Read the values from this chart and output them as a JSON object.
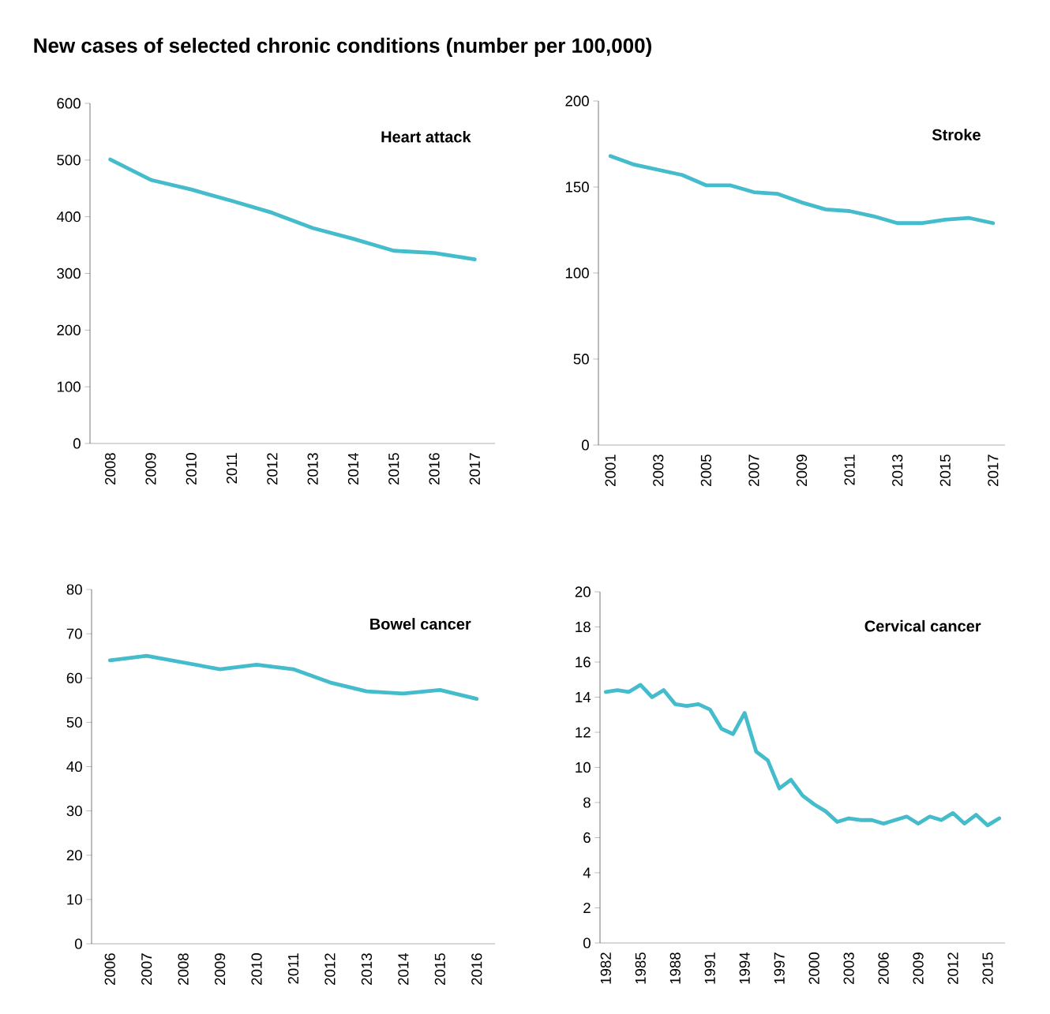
{
  "chart_data": [
    {
      "type": "line",
      "title": "Heart attack",
      "annotations": [
        "New cases of selected chronic conditions (number per 100,000)"
      ],
      "categories": [
        "2008",
        "2009",
        "2010",
        "2011",
        "2012",
        "2013",
        "2014",
        "2015",
        "2016",
        "2017"
      ],
      "values": [
        501,
        465,
        448,
        428,
        407,
        380,
        361,
        340,
        336,
        325
      ],
      "color": "#45bccb",
      "ylim": [
        0,
        600
      ],
      "yticks": [
        0,
        100,
        200,
        300,
        400,
        500,
        600
      ]
    },
    {
      "type": "line",
      "title": "Stroke",
      "categories": [
        "2001",
        null,
        "2003",
        null,
        "2005",
        null,
        "2007",
        null,
        "2009",
        null,
        "2011",
        null,
        "2013",
        null,
        "2015",
        null,
        "2017"
      ],
      "values": [
        168,
        163,
        160,
        157,
        151,
        151,
        147,
        146,
        141,
        137,
        136,
        133,
        129,
        129,
        131,
        132,
        129
      ],
      "color": "#45bccb",
      "ylim": [
        0,
        200
      ],
      "yticks": [
        0,
        50,
        100,
        150,
        200
      ]
    },
    {
      "type": "line",
      "title": "Bowel cancer",
      "categories": [
        "2006",
        "2007",
        "2008",
        "2009",
        "2010",
        "2011",
        "2012",
        "2013",
        "2014",
        "2015",
        "2016"
      ],
      "values": [
        64,
        65,
        63.5,
        62,
        63,
        62,
        59,
        57,
        56.5,
        57.3,
        55.3
      ],
      "color": "#45bccb",
      "ylim": [
        0,
        80
      ],
      "yticks": [
        0,
        10,
        20,
        30,
        40,
        50,
        60,
        70,
        80
      ]
    },
    {
      "type": "line",
      "title": "Cervical cancer",
      "categories": [
        "1982",
        null,
        null,
        "1985",
        null,
        null,
        "1988",
        null,
        null,
        "1991",
        null,
        null,
        "1994",
        null,
        null,
        "1997",
        null,
        null,
        "2000",
        null,
        null,
        "2003",
        null,
        null,
        "2006",
        null,
        null,
        "2009",
        null,
        null,
        "2012",
        null,
        null,
        "2015",
        null
      ],
      "values": [
        14.3,
        14.4,
        14.3,
        14.7,
        14.0,
        14.4,
        13.6,
        13.5,
        13.6,
        13.3,
        12.2,
        11.9,
        13.1,
        10.9,
        10.4,
        8.8,
        9.3,
        8.4,
        7.9,
        7.5,
        6.9,
        7.1,
        7.0,
        7.0,
        6.8,
        7.0,
        7.2,
        6.8,
        7.2,
        7.0,
        7.4,
        6.8,
        7.3,
        6.7,
        7.1
      ],
      "color": "#45bccb",
      "ylim": [
        0,
        20
      ],
      "yticks": [
        0,
        2,
        4,
        6,
        8,
        10,
        12,
        14,
        16,
        18,
        20
      ]
    }
  ]
}
